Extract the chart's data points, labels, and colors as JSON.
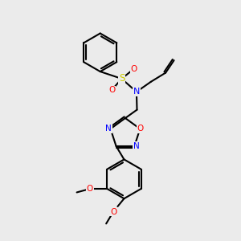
{
  "background_color": "#ebebeb",
  "bond_color": "#000000",
  "atom_colors": {
    "N": "#0000ff",
    "O": "#ff0000",
    "S": "#cccc00",
    "C": "#000000"
  },
  "font_size": 7.5,
  "line_width": 1.5
}
